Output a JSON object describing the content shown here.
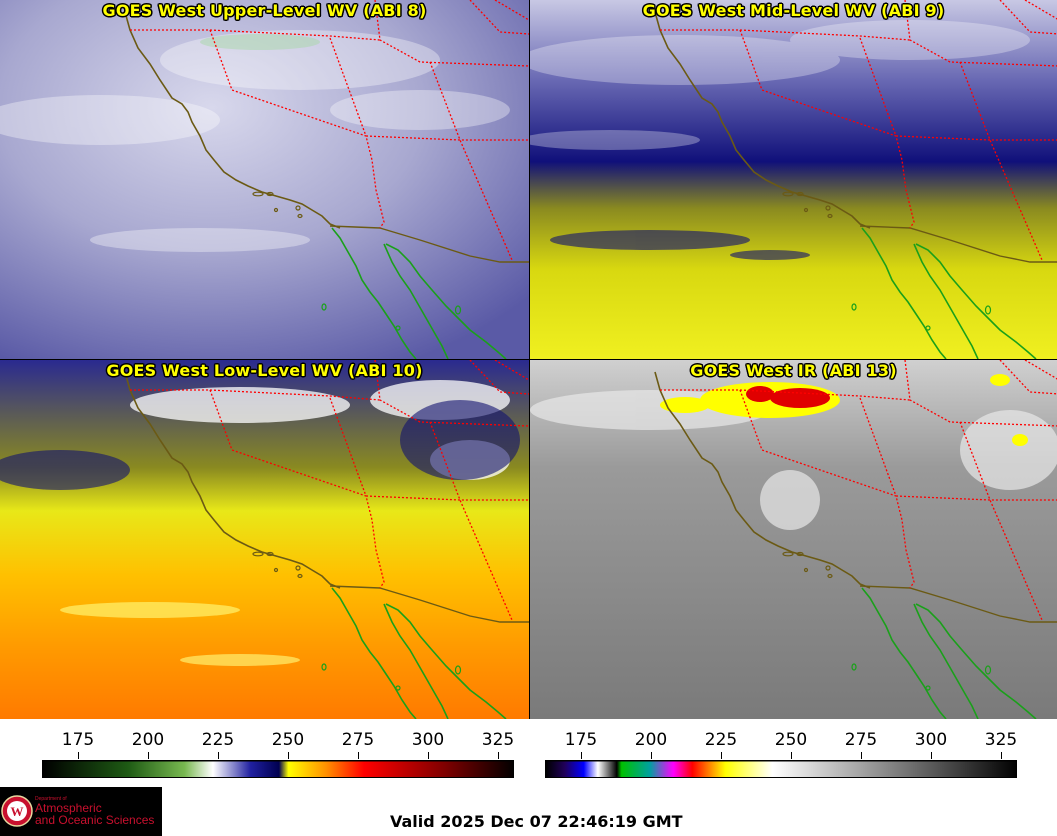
{
  "panels": [
    {
      "title": "GOES West Upper-Level WV (ABI 8)"
    },
    {
      "title": "GOES West Mid-Level WV (ABI 9)"
    },
    {
      "title": "GOES West Low-Level WV (ABI 10)"
    },
    {
      "title": "GOES West IR (ABI 13)"
    }
  ],
  "colorbars": {
    "wv": {
      "ticks": [
        "175",
        "200",
        "225",
        "250",
        "275",
        "300",
        "325"
      ]
    },
    "ir": {
      "ticks": [
        "175",
        "200",
        "225",
        "250",
        "275",
        "300",
        "325"
      ]
    }
  },
  "logo": {
    "department": "Department of",
    "name_line1": "Atmospheric",
    "name_line2": "and Oceanic Sciences"
  },
  "valid_time": "Valid 2025 Dec 07 22:46:19 GMT",
  "colors": {
    "state_borders": "#ff0000",
    "coastline": "#6b5a14",
    "mexico_coast": "#1aa01a",
    "title_text": "#ffff00"
  }
}
